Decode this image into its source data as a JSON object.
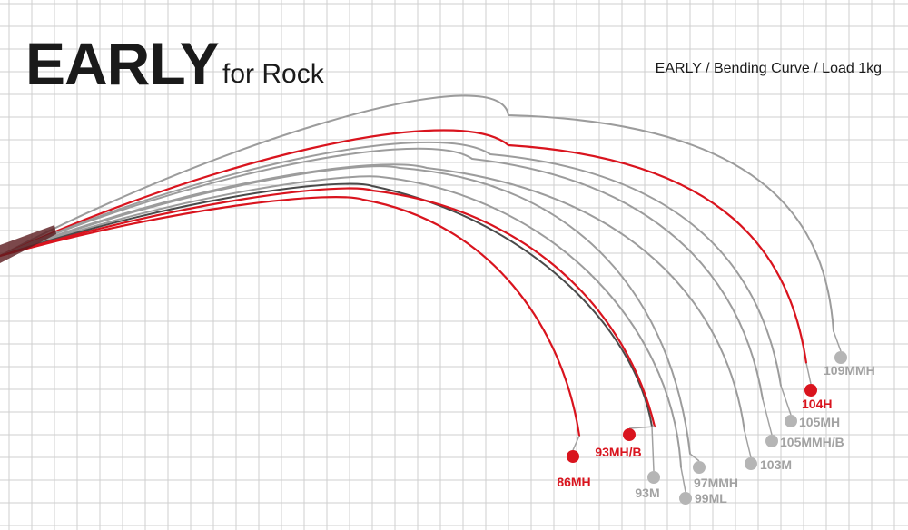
{
  "header": {
    "brand": "EARLY",
    "subtitle": "for Rock",
    "caption": "EARLY / Bending Curve / Load 1kg"
  },
  "colors": {
    "red": "#d9141e",
    "gray_curve": "#9c9c9c",
    "dark_curve": "#4a4a4a",
    "gray_label": "#a2a2a2",
    "grid": "#cfcfcf"
  },
  "chart_data": {
    "type": "line",
    "title": "EARLY / Bending Curve / Load 1kg",
    "grid": true,
    "legend": "labels at curve tips",
    "series": [
      {
        "name": "109MMH",
        "highlight": false,
        "color": "gray"
      },
      {
        "name": "104H",
        "highlight": true,
        "color": "red"
      },
      {
        "name": "105MH",
        "highlight": false,
        "color": "gray"
      },
      {
        "name": "105MMH/B",
        "highlight": false,
        "color": "gray"
      },
      {
        "name": "103M",
        "highlight": false,
        "color": "gray"
      },
      {
        "name": "97MMH",
        "highlight": false,
        "color": "gray"
      },
      {
        "name": "99ML",
        "highlight": false,
        "color": "gray"
      },
      {
        "name": "93M",
        "highlight": false,
        "color": "dark"
      },
      {
        "name": "93MH/B",
        "highlight": true,
        "color": "red"
      },
      {
        "name": "86MH",
        "highlight": true,
        "color": "red"
      }
    ]
  }
}
